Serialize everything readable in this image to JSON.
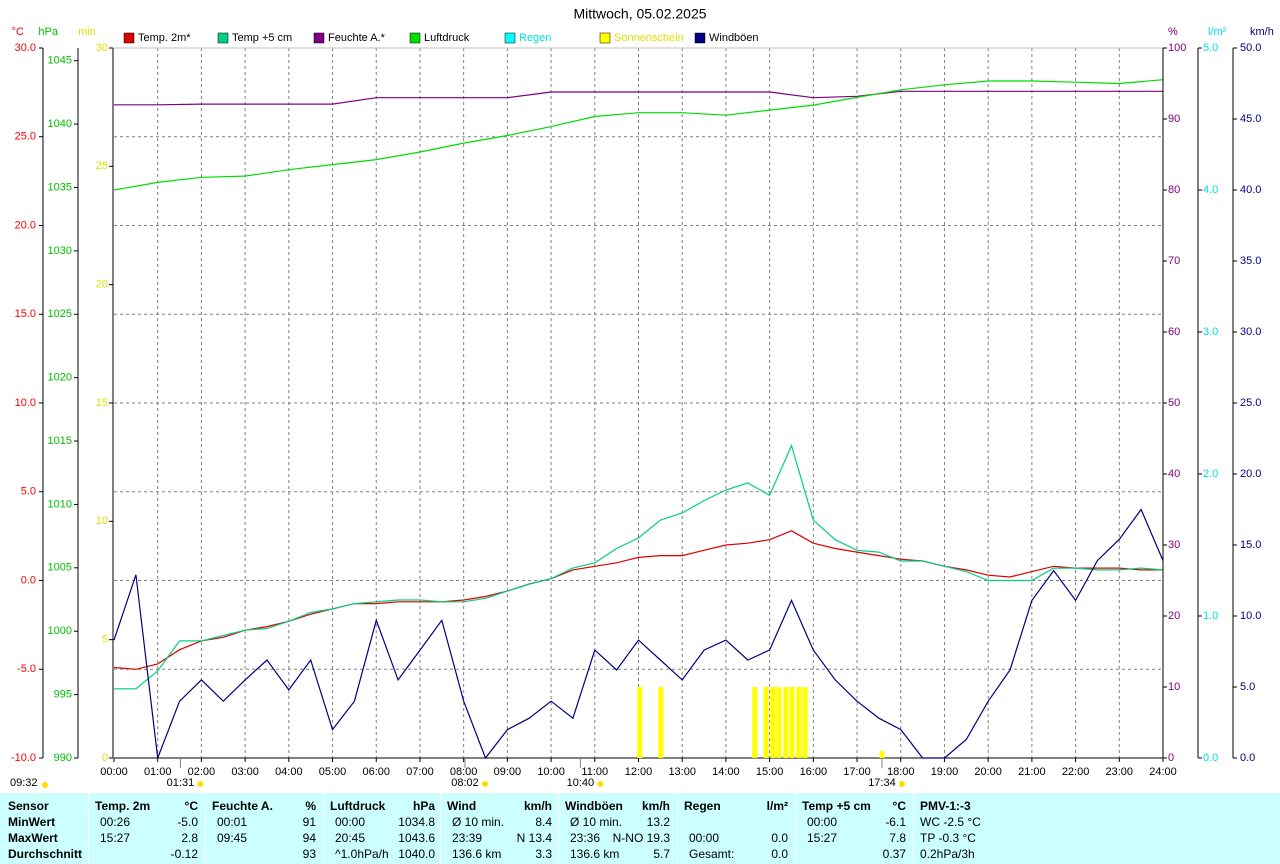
{
  "chart_data": {
    "type": "line",
    "title": "Mittwoch, 05.02.2025",
    "xlim": [
      0,
      24
    ],
    "xticks": [
      {
        "value": 0,
        "label": "00:00"
      },
      {
        "value": 1,
        "label": "01:00"
      },
      {
        "value": 2,
        "label": "02:00"
      },
      {
        "value": 3,
        "label": "03:00"
      },
      {
        "value": 4,
        "label": "04:00"
      },
      {
        "value": 5,
        "label": "05:00"
      },
      {
        "value": 6,
        "label": "06:00"
      },
      {
        "value": 7,
        "label": "07:00"
      },
      {
        "value": 8,
        "label": "08:00"
      },
      {
        "value": 9,
        "label": "09:00"
      },
      {
        "value": 10,
        "label": "10:00"
      },
      {
        "value": 11,
        "label": "11:00"
      },
      {
        "value": 12,
        "label": "12:00"
      },
      {
        "value": 13,
        "label": "13:00"
      },
      {
        "value": 14,
        "label": "14:00"
      },
      {
        "value": 15,
        "label": "15:00"
      },
      {
        "value": 16,
        "label": "16:00"
      },
      {
        "value": 17,
        "label": "17:00"
      },
      {
        "value": 18,
        "label": "18:00"
      },
      {
        "value": 19,
        "label": "19:00"
      },
      {
        "value": 20,
        "label": "20:00"
      },
      {
        "value": 21,
        "label": "21:00"
      },
      {
        "value": 22,
        "label": "22:00"
      },
      {
        "value": 23,
        "label": "23:00"
      },
      {
        "value": 24,
        "label": "24:00"
      }
    ],
    "grid": true,
    "axes": [
      {
        "label": "°C",
        "side": "left",
        "color": "#ff0000",
        "grid": true,
        "lim": [
          -10,
          30
        ],
        "ticks": [
          {
            "value": -10,
            "label": "-10.0"
          },
          {
            "value": -5,
            "label": "-5.0"
          },
          {
            "value": 0,
            "label": "0.0"
          },
          {
            "value": 5,
            "label": "5.0"
          },
          {
            "value": 10,
            "label": "10.0"
          },
          {
            "value": 15,
            "label": "15.0"
          },
          {
            "value": 20,
            "label": "20.0"
          },
          {
            "value": 25,
            "label": "25.0"
          },
          {
            "value": 30,
            "label": "30.0"
          }
        ]
      },
      {
        "label": "hPa",
        "side": "left",
        "color": "#00c000",
        "lim": [
          990,
          1046
        ],
        "ticks": [
          990,
          995,
          1000,
          1005,
          1010,
          1015,
          1020,
          1025,
          1030,
          1035,
          1040,
          1045
        ]
      },
      {
        "label": "min",
        "side": "left",
        "color": "#e0e000",
        "lim": [
          0,
          30
        ],
        "ticks": [
          0,
          5,
          10,
          15,
          20,
          25,
          30
        ]
      },
      {
        "label": "%",
        "side": "right",
        "color": "#800080",
        "lim": [
          0,
          100
        ],
        "ticks": [
          0,
          10,
          20,
          30,
          40,
          50,
          60,
          70,
          80,
          90,
          100
        ]
      },
      {
        "label": "l/m²",
        "side": "right",
        "color": "#00e0e0",
        "lim": [
          0,
          5
        ],
        "ticks": [
          {
            "value": 0,
            "label": "0.0"
          },
          {
            "value": 1,
            "label": "1.0"
          },
          {
            "value": 2,
            "label": "2.0"
          },
          {
            "value": 3,
            "label": "3.0"
          },
          {
            "value": 4,
            "label": "4.0"
          },
          {
            "value": 5,
            "label": "5.0"
          }
        ]
      },
      {
        "label": "km/h",
        "side": "right",
        "color": "#000080",
        "lim": [
          0,
          50
        ],
        "ticks": [
          {
            "value": 0,
            "label": "0.0"
          },
          {
            "value": 5,
            "label": "5.0"
          },
          {
            "value": 10,
            "label": "10.0"
          },
          {
            "value": 15,
            "label": "15.0"
          },
          {
            "value": 20,
            "label": "20.0"
          },
          {
            "value": 25,
            "label": "25.0"
          },
          {
            "value": 30,
            "label": "30.0"
          },
          {
            "value": 35,
            "label": "35.0"
          },
          {
            "value": 40,
            "label": "40.0"
          },
          {
            "value": 45,
            "label": "45.0"
          },
          {
            "value": 50,
            "label": "50.0"
          }
        ]
      }
    ],
    "series": [
      {
        "name": "Temp. 2m*",
        "color": "#dd0000",
        "axis": "°C",
        "x": [
          0,
          0.5,
          1,
          1.5,
          2,
          2.5,
          3,
          3.5,
          4,
          4.5,
          5,
          5.5,
          6,
          6.5,
          7,
          7.5,
          8,
          8.5,
          9,
          9.5,
          10,
          10.5,
          11,
          11.5,
          12,
          12.5,
          13,
          13.5,
          14,
          14.5,
          15,
          15.5,
          16,
          16.5,
          17,
          17.5,
          18,
          18.5,
          19,
          19.5,
          20,
          20.5,
          21,
          21.5,
          22,
          22.5,
          23,
          23.5,
          24
        ],
        "values": [
          -4.9,
          -5.0,
          -4.7,
          -3.9,
          -3.4,
          -3.2,
          -2.8,
          -2.6,
          -2.3,
          -1.9,
          -1.6,
          -1.3,
          -1.3,
          -1.2,
          -1.2,
          -1.2,
          -1.1,
          -0.9,
          -0.6,
          -0.2,
          0.1,
          0.6,
          0.8,
          1.0,
          1.3,
          1.4,
          1.4,
          1.7,
          2.0,
          2.1,
          2.3,
          2.8,
          2.1,
          1.8,
          1.6,
          1.4,
          1.2,
          1.1,
          0.8,
          0.6,
          0.3,
          0.2,
          0.5,
          0.8,
          0.7,
          0.7,
          0.7,
          0.6,
          0.6
        ]
      },
      {
        "name": "Temp +5 cm",
        "color": "#00d080",
        "axis": "°C",
        "x": [
          0,
          0.5,
          1,
          1.5,
          2,
          2.5,
          3,
          3.5,
          4,
          4.5,
          5,
          5.5,
          6,
          6.5,
          7,
          7.5,
          8,
          8.5,
          9,
          9.5,
          10,
          10.5,
          11,
          11.5,
          12,
          12.5,
          13,
          13.5,
          14,
          14.5,
          15,
          15.5,
          16,
          16.5,
          17,
          17.5,
          18,
          18.5,
          19,
          19.5,
          20,
          20.5,
          21,
          21.5,
          22,
          22.5,
          23,
          23.5,
          24
        ],
        "values": [
          -6.1,
          -6.1,
          -5.1,
          -3.4,
          -3.4,
          -3.1,
          -2.8,
          -2.7,
          -2.3,
          -1.8,
          -1.6,
          -1.3,
          -1.2,
          -1.1,
          -1.1,
          -1.2,
          -1.2,
          -1.0,
          -0.6,
          -0.2,
          0.1,
          0.7,
          1.0,
          1.8,
          2.4,
          3.4,
          3.8,
          4.5,
          5.1,
          5.5,
          4.8,
          7.6,
          3.4,
          2.3,
          1.7,
          1.6,
          1.1,
          1.1,
          0.8,
          0.5,
          0.0,
          0.0,
          0.0,
          0.7,
          0.7,
          0.6,
          0.6,
          0.7,
          0.6
        ]
      },
      {
        "name": "Feuchte A.*",
        "color": "#800080",
        "axis": "%",
        "x": [
          0,
          1,
          2,
          3,
          4,
          5,
          6,
          7,
          8,
          9,
          10,
          11,
          12,
          13,
          14,
          15,
          16,
          17,
          18,
          19,
          20,
          21,
          22,
          23,
          24
        ],
        "values": [
          92.0,
          92.0,
          92.1,
          92.1,
          92.1,
          92.1,
          93.0,
          93.0,
          93.0,
          93.0,
          93.8,
          93.8,
          93.8,
          93.8,
          93.8,
          93.8,
          93.0,
          93.2,
          93.9,
          93.9,
          93.9,
          93.9,
          93.9,
          93.9,
          93.9
        ]
      },
      {
        "name": "Luftdruck",
        "color": "#00dd00",
        "axis": "hPa",
        "x": [
          0,
          1,
          2,
          3,
          4,
          5,
          6,
          7,
          8,
          9,
          10,
          11,
          12,
          13,
          14,
          15,
          16,
          17,
          18,
          19,
          20,
          21,
          22,
          23,
          24
        ],
        "values": [
          1034.8,
          1035.4,
          1035.8,
          1035.9,
          1036.4,
          1036.8,
          1037.2,
          1037.8,
          1038.5,
          1039.1,
          1039.8,
          1040.6,
          1040.9,
          1040.9,
          1040.7,
          1041.1,
          1041.5,
          1042.1,
          1042.7,
          1043.1,
          1043.4,
          1043.4,
          1043.3,
          1043.2,
          1043.5
        ]
      },
      {
        "name": "Regen",
        "color": "#00ffff",
        "legend_color": "#00e0e0",
        "axis": "l/m²"
      },
      {
        "name": "Sonnenschein",
        "color": "#ffff00",
        "legend_color": "#e0e000",
        "axis": "min",
        "type": "bar",
        "x": [
          12.03,
          12.51,
          14.66,
          14.92,
          15.08,
          15.21,
          15.37,
          15.51,
          15.67,
          15.81,
          17.57
        ],
        "values": [
          3,
          3,
          3,
          3,
          3,
          3,
          3,
          3,
          3,
          3,
          0.3
        ]
      },
      {
        "name": "Windböen",
        "color": "#000080",
        "axis": "km/h",
        "x": [
          0,
          0.5,
          1,
          1.5,
          2,
          2.5,
          3,
          3.5,
          4,
          4.5,
          5,
          5.5,
          6,
          6.5,
          7,
          7.5,
          8,
          8.5,
          9,
          9.5,
          10,
          10.5,
          11,
          11.5,
          12,
          12.5,
          13,
          13.5,
          14,
          14.5,
          15,
          15.5,
          16,
          16.5,
          17,
          17.5,
          18,
          18.5,
          19,
          19.5,
          20,
          20.5,
          21,
          21.5,
          22,
          22.5,
          23,
          23.5,
          24
        ],
        "values": [
          8.3,
          12.9,
          0,
          4.0,
          5.5,
          4.0,
          5.5,
          6.9,
          4.8,
          6.9,
          2.0,
          4.0,
          9.7,
          5.5,
          7.6,
          9.7,
          4.0,
          0,
          2.0,
          2.8,
          4.0,
          2.8,
          7.6,
          6.2,
          8.3,
          6.9,
          5.5,
          7.6,
          8.3,
          6.9,
          7.6,
          11.1,
          7.6,
          5.5,
          4.0,
          2.8,
          2.0,
          0,
          0,
          1.3,
          4.0,
          6.2,
          11.1,
          13.2,
          11.1,
          13.9,
          15.4,
          17.5,
          13.9
        ]
      }
    ],
    "annotations": [
      {
        "text": "01:31",
        "x": 1.52
      },
      {
        "text": "08:02",
        "x": 8.03
      },
      {
        "text": "10:40",
        "x": 10.67
      },
      {
        "text": "17:34",
        "x": 17.57
      }
    ],
    "corner_note": "09:32"
  },
  "table": {
    "columns": [
      {
        "header": "Sensor",
        "rows": [
          "MinWert",
          "MaxWert",
          "Durchschnitt"
        ]
      },
      {
        "header": "Temp. 2m",
        "unit": "°C",
        "rows": [
          {
            "time": "00:26",
            "value": "-5.0"
          },
          {
            "time": "15:27",
            "value": "2.8"
          },
          {
            "value": "-0.12"
          }
        ]
      },
      {
        "header": "Feuchte A.",
        "unit": "%",
        "rows": [
          {
            "time": "00:01",
            "value": "91"
          },
          {
            "time": "09:45",
            "value": "94"
          },
          {
            "value": "93"
          }
        ]
      },
      {
        "header": "Luftdruck",
        "unit": "hPa",
        "rows": [
          {
            "time": "00:00",
            "value": "1034.8"
          },
          {
            "time": "20:45",
            "value": "1043.6"
          },
          {
            "time": "^1.0hPa/h",
            "value": "1040.0"
          }
        ]
      },
      {
        "header": "Wind",
        "unit": "km/h",
        "rows": [
          {
            "time": "Ø 10 min.",
            "value": "8.4"
          },
          {
            "time": "23:39",
            "value": "N 13.4"
          },
          {
            "time": "136.6 km",
            "value": "3.3"
          }
        ]
      },
      {
        "header": "Windböen",
        "unit": "km/h",
        "rows": [
          {
            "time": "Ø 10 min.",
            "value": "13.2"
          },
          {
            "time": "23:36",
            "value": "N-NO 19.3"
          },
          {
            "time": "136.6 km",
            "value": "5.7"
          }
        ]
      },
      {
        "header": "Regen",
        "unit": "l/m²",
        "rows": [
          null,
          {
            "time": "00:00",
            "value": "0.0"
          },
          {
            "time": "Gesamt:",
            "value": "0.0"
          }
        ]
      },
      {
        "header": "Temp +5 cm",
        "unit": "°C",
        "rows": [
          {
            "time": "00:00",
            "value": "-6.1"
          },
          {
            "time": "15:27",
            "value": "7.8"
          },
          {
            "value": "0.37"
          }
        ]
      },
      {
        "header": "PMV-1:-3",
        "rows": [
          "WC -2.5 °C",
          "TP -0.3 °C",
          "0.2hPa/3h"
        ]
      }
    ]
  }
}
